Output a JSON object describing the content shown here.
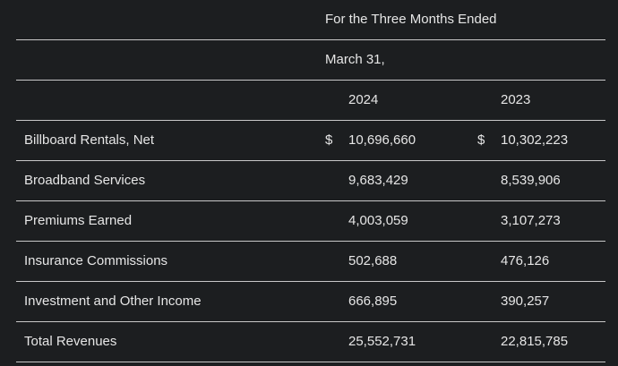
{
  "header": {
    "period_label": "For the Three Months Ended",
    "date_label": "March 31,",
    "year_1": "2024",
    "year_2": "2023"
  },
  "currency_symbol": "$",
  "rows": [
    {
      "label": "Billboard Rentals, Net",
      "v2024": "10,696,660",
      "v2023": "10,302,223",
      "show_dollar": true
    },
    {
      "label": "Broadband Services",
      "v2024": "9,683,429",
      "v2023": "8,539,906",
      "show_dollar": false
    },
    {
      "label": "Premiums Earned",
      "v2024": "4,003,059",
      "v2023": "3,107,273",
      "show_dollar": false
    },
    {
      "label": "Insurance Commissions",
      "v2024": "502,688",
      "v2023": "476,126",
      "show_dollar": false
    },
    {
      "label": "Investment and Other Income",
      "v2024": "666,895",
      "v2023": "390,257",
      "show_dollar": false
    },
    {
      "label": "Total Revenues",
      "v2024": "25,552,731",
      "v2023": "22,815,785",
      "show_dollar": false
    }
  ]
}
